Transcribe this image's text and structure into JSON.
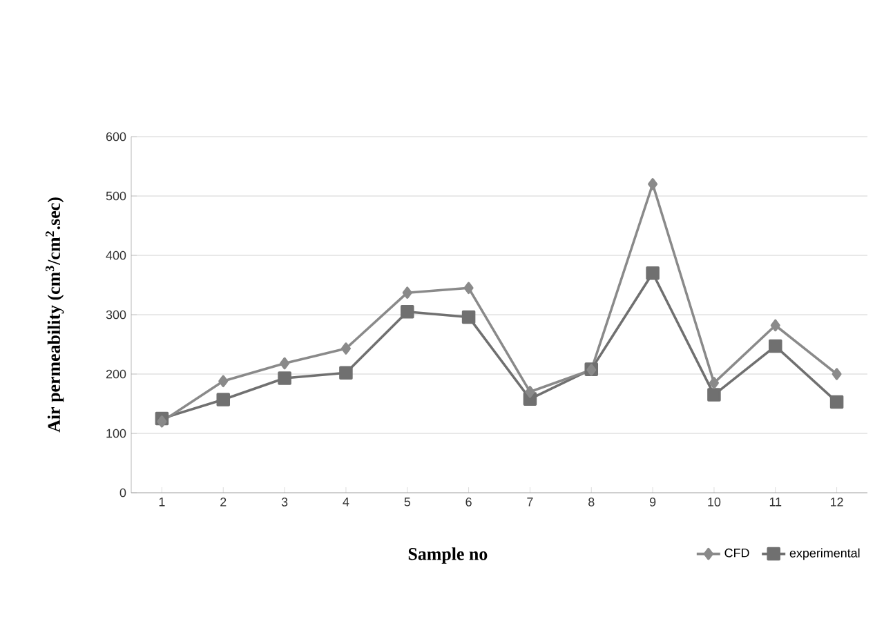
{
  "chart_data": {
    "type": "line",
    "xlabel": "Sample no",
    "ylabel": "Air permeability (cm$^{3}$/cm$^{2}$.sec)",
    "categories": [
      "1",
      "2",
      "3",
      "4",
      "5",
      "6",
      "7",
      "8",
      "9",
      "10",
      "11",
      "12"
    ],
    "series": [
      {
        "name": "CFD",
        "color": "#8a8a8a",
        "marker": "diamond",
        "values": [
          120,
          188,
          218,
          243,
          337,
          345,
          170,
          207,
          520,
          185,
          282,
          200
        ]
      },
      {
        "name": "experimental",
        "color": "#707070",
        "marker": "square",
        "values": [
          125,
          157,
          193,
          202,
          305,
          296,
          158,
          208,
          370,
          165,
          247,
          153
        ]
      }
    ],
    "ylim": [
      0,
      600
    ],
    "yticks": [
      0,
      100,
      200,
      300,
      400,
      500,
      600
    ],
    "grid": "y",
    "legend": "bottom right",
    "line_style": "solid"
  }
}
